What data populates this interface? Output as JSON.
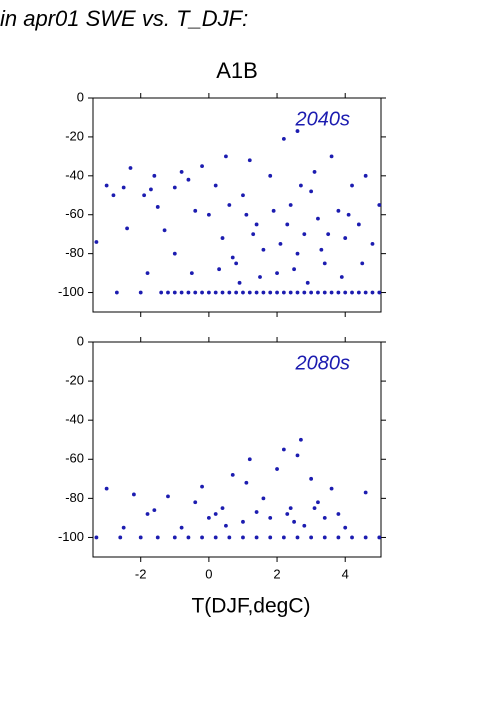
{
  "heading": "in apr01 SWE vs. T_DJF:",
  "chart_data": [
    {
      "type": "scatter",
      "title": "A1B",
      "annotation": "2040s",
      "color": "#1c1cb0",
      "xlim": [
        -3.4,
        5.05
      ],
      "ylim": [
        -110,
        0
      ],
      "yticks": [
        0,
        -20,
        -40,
        -60,
        -80,
        -100
      ],
      "xticks": [
        -2,
        0,
        2,
        4
      ],
      "show_xtick_labels": false,
      "x": [
        -3.3,
        -3.0,
        -2.8,
        -2.5,
        -2.3,
        -2.4,
        -1.9,
        -1.7,
        -1.6,
        -1.5,
        -1.3,
        -1.0,
        -0.8,
        -0.6,
        -0.4,
        -0.2,
        0.0,
        0.2,
        0.4,
        0.6,
        0.8,
        1.0,
        1.2,
        1.4,
        1.6,
        1.8,
        2.0,
        2.2,
        2.4,
        2.6,
        2.8,
        3.0,
        3.2,
        3.4,
        3.6,
        3.8,
        4.0,
        4.2,
        4.4,
        4.6,
        4.8,
        5.0,
        -1.0,
        -0.5,
        0.3,
        0.9,
        1.5,
        2.1,
        2.5,
        2.9,
        3.3,
        3.9,
        4.5,
        1.1,
        1.9,
        2.7,
        3.1,
        0.5,
        -1.8,
        2.3,
        2.6,
        3.5,
        0.7,
        1.3,
        4.1,
        -2.7,
        -2.0,
        -1.4,
        -1.2,
        -1.0,
        -0.8,
        -0.6,
        -0.4,
        -0.2,
        0.0,
        0.2,
        0.4,
        0.6,
        0.8,
        1.0,
        1.2,
        1.4,
        1.6,
        1.8,
        2.0,
        2.2,
        2.4,
        2.6,
        2.8,
        3.0,
        3.2,
        3.4,
        3.6,
        3.8,
        4.0,
        4.2,
        4.4,
        4.6,
        4.8,
        5.0
      ],
      "values": [
        -74,
        -45,
        -50,
        -46,
        -36,
        -67,
        -50,
        -47,
        -40,
        -56,
        -68,
        -46,
        -38,
        -42,
        -58,
        -35,
        -60,
        -45,
        -72,
        -55,
        -85,
        -50,
        -32,
        -65,
        -78,
        -40,
        -90,
        -21,
        -55,
        -17,
        -70,
        -48,
        -62,
        -85,
        -30,
        -58,
        -72,
        -45,
        -65,
        -40,
        -75,
        -55,
        -80,
        -90,
        -88,
        -95,
        -92,
        -75,
        -88,
        -95,
        -78,
        -92,
        -85,
        -60,
        -58,
        -45,
        -38,
        -30,
        -90,
        -65,
        -80,
        -70,
        -82,
        -70,
        -60,
        -100,
        -100,
        -100,
        -100,
        -100,
        -100,
        -100,
        -100,
        -100,
        -100,
        -100,
        -100,
        -100,
        -100,
        -100,
        -100,
        -100,
        -100,
        -100,
        -100,
        -100,
        -100,
        -100,
        -100,
        -100,
        -100,
        -100,
        -100,
        -100,
        -100,
        -100,
        -100,
        -100,
        -100,
        -100
      ]
    },
    {
      "type": "scatter",
      "annotation": "2080s",
      "xlabel": "T(DJF,degC)",
      "color": "#1c1cb0",
      "xlim": [
        -3.4,
        5.05
      ],
      "ylim": [
        -110,
        0
      ],
      "yticks": [
        0,
        -20,
        -40,
        -60,
        -80,
        -100
      ],
      "xticks": [
        -2,
        0,
        2,
        4
      ],
      "show_xtick_labels": true,
      "x": [
        -3.0,
        -2.5,
        -2.2,
        -1.8,
        -1.6,
        -1.2,
        -0.8,
        -0.4,
        -0.2,
        0.0,
        0.2,
        0.4,
        0.7,
        1.0,
        1.2,
        1.4,
        1.6,
        1.8,
        2.0,
        2.2,
        2.4,
        2.5,
        2.6,
        2.8,
        3.0,
        3.2,
        3.4,
        3.6,
        3.8,
        4.0,
        4.6,
        1.1,
        2.7,
        0.5,
        2.3,
        3.1,
        -3.3,
        -2.6,
        -2.0,
        -1.5,
        -1.0,
        -0.6,
        -0.2,
        0.2,
        0.6,
        1.0,
        1.4,
        1.8,
        2.2,
        2.6,
        3.0,
        3.4,
        3.8,
        4.2,
        4.6,
        5.0
      ],
      "values": [
        -75,
        -95,
        -78,
        -88,
        -86,
        -79,
        -95,
        -82,
        -74,
        -90,
        -88,
        -85,
        -68,
        -92,
        -60,
        -87,
        -80,
        -90,
        -65,
        -55,
        -85,
        -92,
        -58,
        -94,
        -70,
        -82,
        -90,
        -75,
        -88,
        -95,
        -77,
        -72,
        -50,
        -94,
        -88,
        -85,
        -100,
        -100,
        -100,
        -100,
        -100,
        -100,
        -100,
        -100,
        -100,
        -100,
        -100,
        -100,
        -100,
        -100,
        -100,
        -100,
        -100,
        -100,
        -100,
        -100
      ]
    }
  ]
}
